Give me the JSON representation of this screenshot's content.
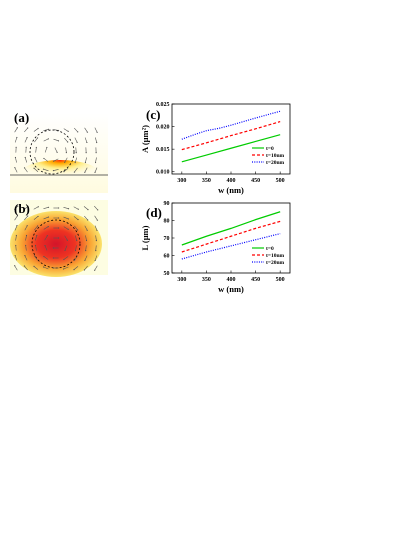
{
  "panels": {
    "a": {
      "label": "(a)"
    },
    "b": {
      "label": "(b)"
    }
  },
  "chart_data": [
    {
      "id": "c",
      "panel_label": "(c)",
      "type": "line",
      "xlabel": "w (nm)",
      "ylabel": "A (μm²)",
      "xlim": [
        280,
        520
      ],
      "ylim": [
        0.0095,
        0.025
      ],
      "xticks": [
        300,
        350,
        400,
        450,
        500
      ],
      "yticks": [
        0.01,
        0.015,
        0.02,
        0.025
      ],
      "ytick_labels": [
        "0.010",
        "0.015",
        "0.020",
        "0.025"
      ],
      "legend_position": "bottom-right",
      "series": [
        {
          "name": "t=0",
          "color": "#00cc00",
          "dash": "solid",
          "x": [
            300,
            350,
            400,
            450,
            500
          ],
          "y": [
            0.0122,
            0.0137,
            0.0152,
            0.0167,
            0.0182
          ]
        },
        {
          "name": "t=10nm",
          "color": "#ff0000",
          "dash": "dash",
          "x": [
            300,
            350,
            400,
            450,
            500
          ],
          "y": [
            0.0149,
            0.0164,
            0.018,
            0.0195,
            0.0211
          ]
        },
        {
          "name": "t=20nm",
          "color": "#0000ff",
          "dash": "dot",
          "x": [
            300,
            325,
            350,
            375,
            400,
            450,
            500
          ],
          "y": [
            0.0172,
            0.0182,
            0.0191,
            0.0196,
            0.0203,
            0.0219,
            0.0234
          ]
        }
      ]
    },
    {
      "id": "d",
      "panel_label": "(d)",
      "type": "line",
      "xlabel": "w (nm)",
      "ylabel": "L (μm)",
      "xlim": [
        280,
        520
      ],
      "ylim": [
        50,
        90
      ],
      "xticks": [
        300,
        350,
        400,
        450,
        500
      ],
      "yticks": [
        50,
        60,
        70,
        80,
        90
      ],
      "ytick_labels": [
        "50",
        "60",
        "70",
        "80",
        "90"
      ],
      "legend_position": "bottom-right",
      "series": [
        {
          "name": "t=0",
          "color": "#00cc00",
          "dash": "solid",
          "x": [
            300,
            350,
            400,
            450,
            500
          ],
          "y": [
            66,
            71,
            75.5,
            80.5,
            85
          ]
        },
        {
          "name": "t=10nm",
          "color": "#ff0000",
          "dash": "dash",
          "x": [
            300,
            350,
            400,
            450,
            500
          ],
          "y": [
            62,
            66.5,
            71,
            75.5,
            79.5
          ]
        },
        {
          "name": "t=20nm",
          "color": "#0000ff",
          "dash": "dot",
          "x": [
            300,
            350,
            400,
            450,
            500
          ],
          "y": [
            58,
            62,
            65.5,
            69,
            72.5
          ]
        }
      ]
    }
  ]
}
